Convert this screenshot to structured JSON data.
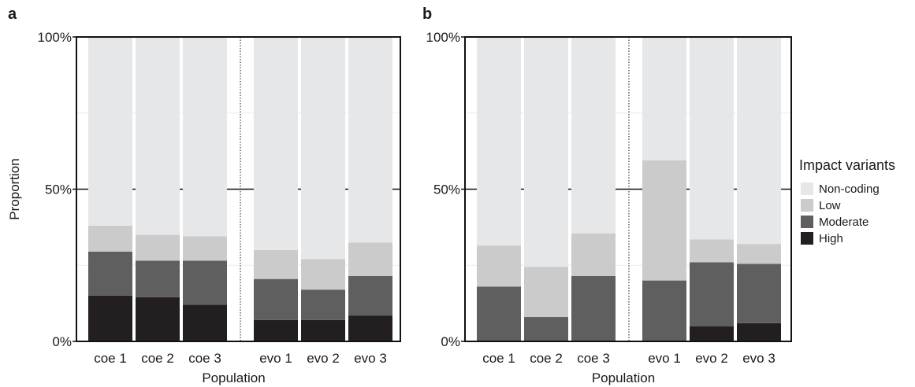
{
  "chart_data": [
    {
      "panel_label": "a",
      "type": "bar",
      "stacked": true,
      "categories": [
        "coe 1",
        "coe 2",
        "coe 3",
        "evo 1",
        "evo 2",
        "evo 3"
      ],
      "series": [
        {
          "name": "High",
          "values": [
            15,
            14.5,
            12,
            7,
            7,
            8.5
          ]
        },
        {
          "name": "Moderate",
          "values": [
            14.5,
            12,
            14.5,
            13.5,
            10,
            13
          ]
        },
        {
          "name": "Low",
          "values": [
            8.5,
            8.5,
            8,
            9.5,
            10,
            11
          ]
        },
        {
          "name": "Non-coding",
          "values": [
            62,
            65,
            65.5,
            70,
            73,
            67.5
          ]
        }
      ],
      "xlabel": "Population",
      "ylabel": "Proportion",
      "ylim": [
        0,
        100
      ],
      "yticks": [
        "0%",
        "50%",
        "100%"
      ],
      "group_divider_after": "coe 3"
    },
    {
      "panel_label": "b",
      "type": "bar",
      "stacked": true,
      "categories": [
        "coe 1",
        "coe 2",
        "coe 3",
        "evo 1",
        "evo 2",
        "evo 3"
      ],
      "series": [
        {
          "name": "High",
          "values": [
            0,
            0,
            0,
            0,
            5,
            6
          ]
        },
        {
          "name": "Moderate",
          "values": [
            18,
            8,
            21.5,
            20,
            21,
            19.5
          ]
        },
        {
          "name": "Low",
          "values": [
            13.5,
            16.5,
            14,
            39.5,
            7.5,
            6.5
          ]
        },
        {
          "name": "Non-coding",
          "values": [
            68.5,
            75.5,
            64.5,
            40.5,
            66.5,
            68
          ]
        }
      ],
      "xlabel": "Population",
      "ylabel": "",
      "ylim": [
        0,
        100
      ],
      "yticks": [
        "0%",
        "50%",
        "100%"
      ],
      "group_divider_after": "coe 3"
    }
  ],
  "legend": {
    "title": "Impact variants",
    "placement": "right",
    "items": [
      {
        "name": "Non-coding",
        "color": "#e6e7e8"
      },
      {
        "name": "Low",
        "color": "#cbcbcc"
      },
      {
        "name": "Moderate",
        "color": "#5f5f60"
      },
      {
        "name": "High",
        "color": "#231f20"
      }
    ]
  },
  "colors": {
    "Non-coding": "#e6e7e8",
    "Low": "#cbcbcc",
    "Moderate": "#5f5f60",
    "High": "#231f20"
  }
}
